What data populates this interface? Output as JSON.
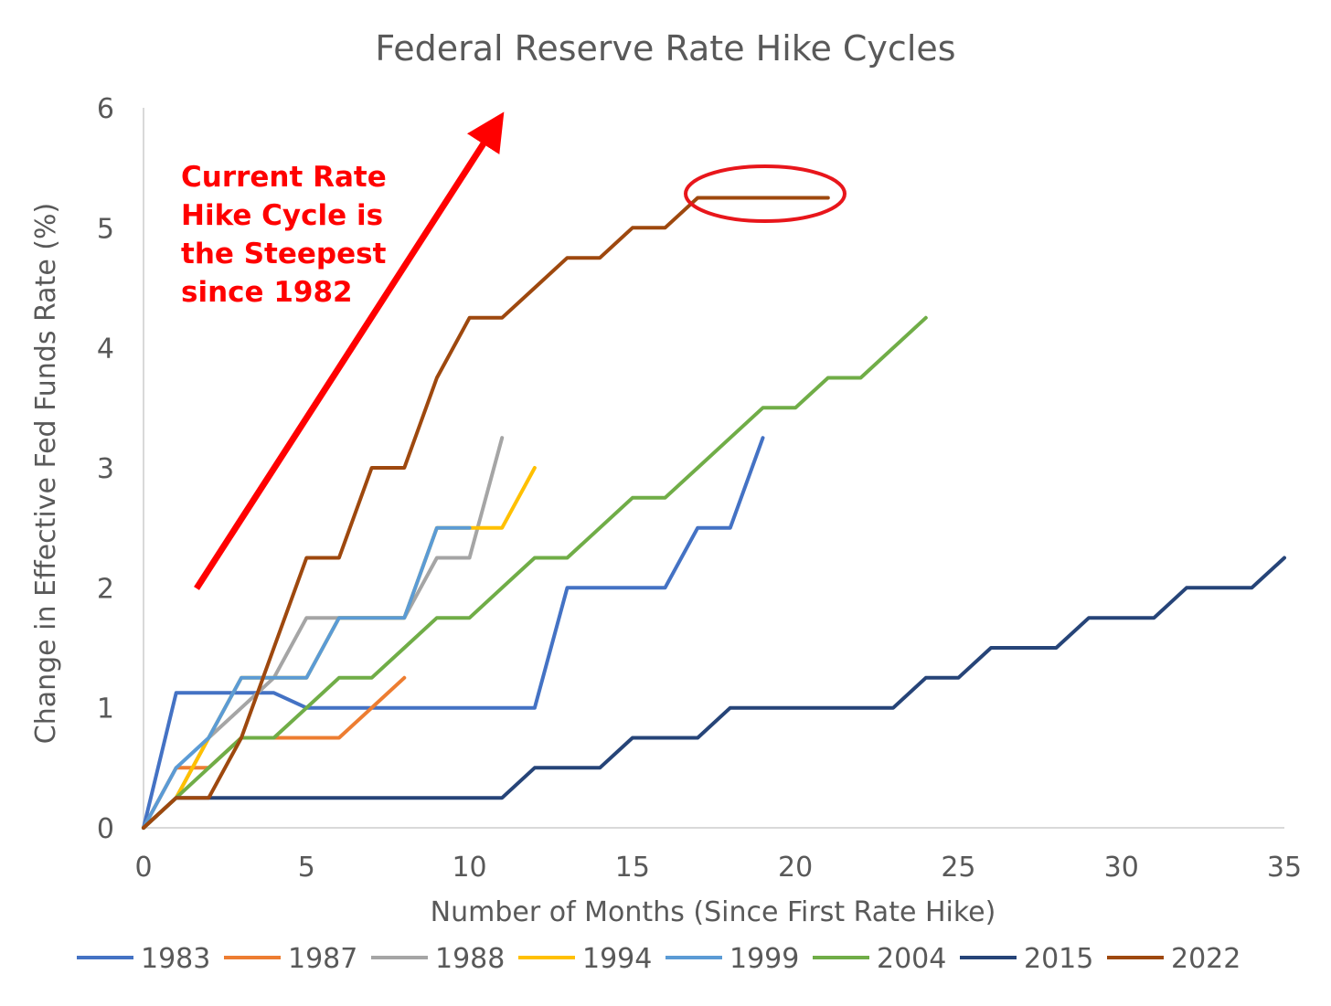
{
  "chart_data": {
    "type": "line",
    "title": "Federal Reserve Rate Hike Cycles",
    "xlabel": "Number of Months (Since First Rate Hike)",
    "ylabel": "Change in Effective Fed Funds Rate (%)",
    "xlim": [
      0,
      35
    ],
    "ylim": [
      0,
      6
    ],
    "xticks": [
      0,
      5,
      10,
      15,
      20,
      25,
      30,
      35
    ],
    "yticks": [
      0,
      1,
      2,
      3,
      4,
      5,
      6
    ],
    "grid": false,
    "legend_position": "bottom",
    "annotation": {
      "lines": [
        "Current Rate",
        "Hike Cycle is",
        "the Steepest",
        "since 1982"
      ],
      "color": "#ff0000"
    },
    "highlight_color": "#e8161b",
    "series": [
      {
        "name": "1983",
        "color": "#4472c4",
        "x": [
          0,
          1,
          2,
          3,
          4,
          5,
          6,
          7,
          8,
          9,
          10,
          11,
          12,
          13,
          14,
          15,
          16,
          17,
          18,
          19
        ],
        "y": [
          0,
          1.125,
          1.125,
          1.125,
          1.125,
          1,
          1,
          1,
          1,
          1,
          1,
          1,
          1,
          2,
          2,
          2,
          2,
          2.5,
          2.5,
          3.25
        ]
      },
      {
        "name": "1987",
        "color": "#ed7d31",
        "x": [
          0,
          1,
          2,
          3,
          4,
          5,
          6,
          7,
          8
        ],
        "y": [
          0,
          0.5,
          0.5,
          0.75,
          0.75,
          0.75,
          0.75,
          1,
          1.25
        ]
      },
      {
        "name": "1988",
        "color": "#a5a5a5",
        "x": [
          0,
          1,
          2,
          3,
          4,
          5,
          6,
          7,
          8,
          9,
          10,
          11
        ],
        "y": [
          0,
          0.25,
          0.75,
          1,
          1.25,
          1.75,
          1.75,
          1.75,
          1.75,
          2.25,
          2.25,
          3.25
        ]
      },
      {
        "name": "1994",
        "color": "#ffc000",
        "x": [
          0,
          1,
          2,
          3,
          4,
          5,
          6,
          7,
          8,
          9,
          10,
          11,
          12
        ],
        "y": [
          0,
          0.25,
          0.75,
          1.25,
          1.25,
          1.25,
          1.75,
          1.75,
          1.75,
          2.5,
          2.5,
          2.5,
          3
        ]
      },
      {
        "name": "1999",
        "color": "#5b9bd5",
        "x": [
          0,
          1,
          2,
          3,
          4,
          5,
          6,
          7,
          8,
          9,
          10
        ],
        "y": [
          0,
          0.5,
          0.75,
          1.25,
          1.25,
          1.25,
          1.75,
          1.75,
          1.75,
          2.5,
          2.5
        ]
      },
      {
        "name": "2004",
        "color": "#70ad47",
        "x": [
          0,
          1,
          2,
          3,
          4,
          5,
          6,
          7,
          8,
          9,
          10,
          11,
          12,
          13,
          14,
          15,
          16,
          17,
          18,
          19,
          20,
          21,
          22,
          23,
          24
        ],
        "y": [
          0,
          0.25,
          0.5,
          0.75,
          0.75,
          1,
          1.25,
          1.25,
          1.5,
          1.75,
          1.75,
          2,
          2.25,
          2.25,
          2.5,
          2.75,
          2.75,
          3,
          3.25,
          3.5,
          3.5,
          3.75,
          3.75,
          4,
          4.25
        ]
      },
      {
        "name": "2015",
        "color": "#264478",
        "x": [
          0,
          1,
          2,
          3,
          4,
          5,
          6,
          7,
          8,
          9,
          10,
          11,
          12,
          13,
          14,
          15,
          16,
          17,
          18,
          19,
          20,
          21,
          22,
          23,
          24,
          25,
          26,
          27,
          28,
          29,
          30,
          31,
          32,
          33,
          34,
          35
        ],
        "y": [
          0,
          0.25,
          0.25,
          0.25,
          0.25,
          0.25,
          0.25,
          0.25,
          0.25,
          0.25,
          0.25,
          0.25,
          0.5,
          0.5,
          0.5,
          0.75,
          0.75,
          0.75,
          1,
          1,
          1,
          1,
          1,
          1,
          1.25,
          1.25,
          1.5,
          1.5,
          1.5,
          1.75,
          1.75,
          1.75,
          2,
          2,
          2,
          2.25
        ]
      },
      {
        "name": "2022",
        "color": "#9e480e",
        "x": [
          0,
          1,
          2,
          3,
          4,
          5,
          6,
          7,
          8,
          9,
          10,
          11,
          12,
          13,
          14,
          15,
          16,
          17,
          18,
          19,
          20,
          21
        ],
        "y": [
          0,
          0.25,
          0.25,
          0.75,
          1.5,
          2.25,
          2.25,
          3,
          3,
          3.75,
          4.25,
          4.25,
          4.5,
          4.75,
          4.75,
          5,
          5,
          5.25,
          5.25,
          5.25,
          5.25,
          5.25
        ]
      }
    ]
  }
}
